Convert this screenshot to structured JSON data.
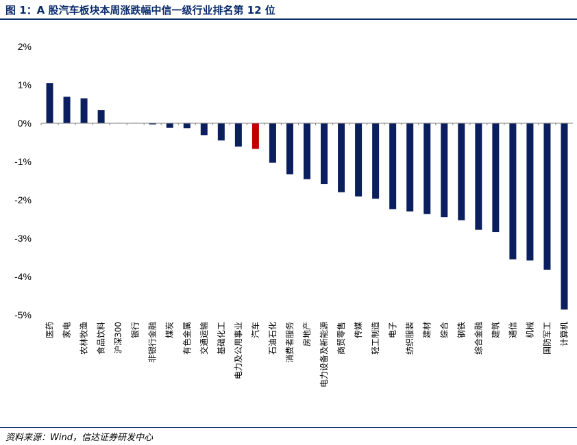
{
  "header": {
    "title": "图 1：A 股汽车板块本周涨跌幅中信一级行业排名第 12 位"
  },
  "footer": {
    "source": "资料来源：Wind，信达证券研发中心"
  },
  "colors": {
    "bar_default": "#0b1f5e",
    "bar_highlight": "#c00000",
    "axis": "#808080"
  },
  "chart_data": {
    "type": "bar",
    "title": "",
    "xlabel": "",
    "ylabel": "",
    "ylim": [
      -5,
      2
    ],
    "yticks": [
      2,
      1,
      0,
      -1,
      -2,
      -3,
      -4,
      -5
    ],
    "ytick_labels": [
      "2%",
      "1%",
      "0%",
      "-1%",
      "-2%",
      "-3%",
      "-4%",
      "-5%"
    ],
    "highlight": "汽车",
    "categories": [
      "医药",
      "家电",
      "农林牧渔",
      "食品饮料",
      "沪深300",
      "银行",
      "非银行金融",
      "煤炭",
      "有色金属",
      "交通运输",
      "基础化工",
      "电力及公用事业",
      "汽车",
      "石油石化",
      "消费者服务",
      "房地产",
      "电力设备及新能源",
      "商贸零售",
      "传媒",
      "轻工制造",
      "电子",
      "纺织服装",
      "建材",
      "综合",
      "钢铁",
      "综合金融",
      "建筑",
      "通信",
      "机械",
      "国防军工",
      "计算机"
    ],
    "values": [
      1.05,
      0.69,
      0.65,
      0.34,
      0.01,
      0.01,
      -0.03,
      -0.12,
      -0.13,
      -0.31,
      -0.45,
      -0.61,
      -0.67,
      -1.03,
      -1.33,
      -1.46,
      -1.59,
      -1.8,
      -1.91,
      -1.97,
      -2.24,
      -2.3,
      -2.37,
      -2.45,
      -2.53,
      -2.78,
      -2.84,
      -3.55,
      -3.58,
      -3.82,
      -4.86
    ]
  }
}
